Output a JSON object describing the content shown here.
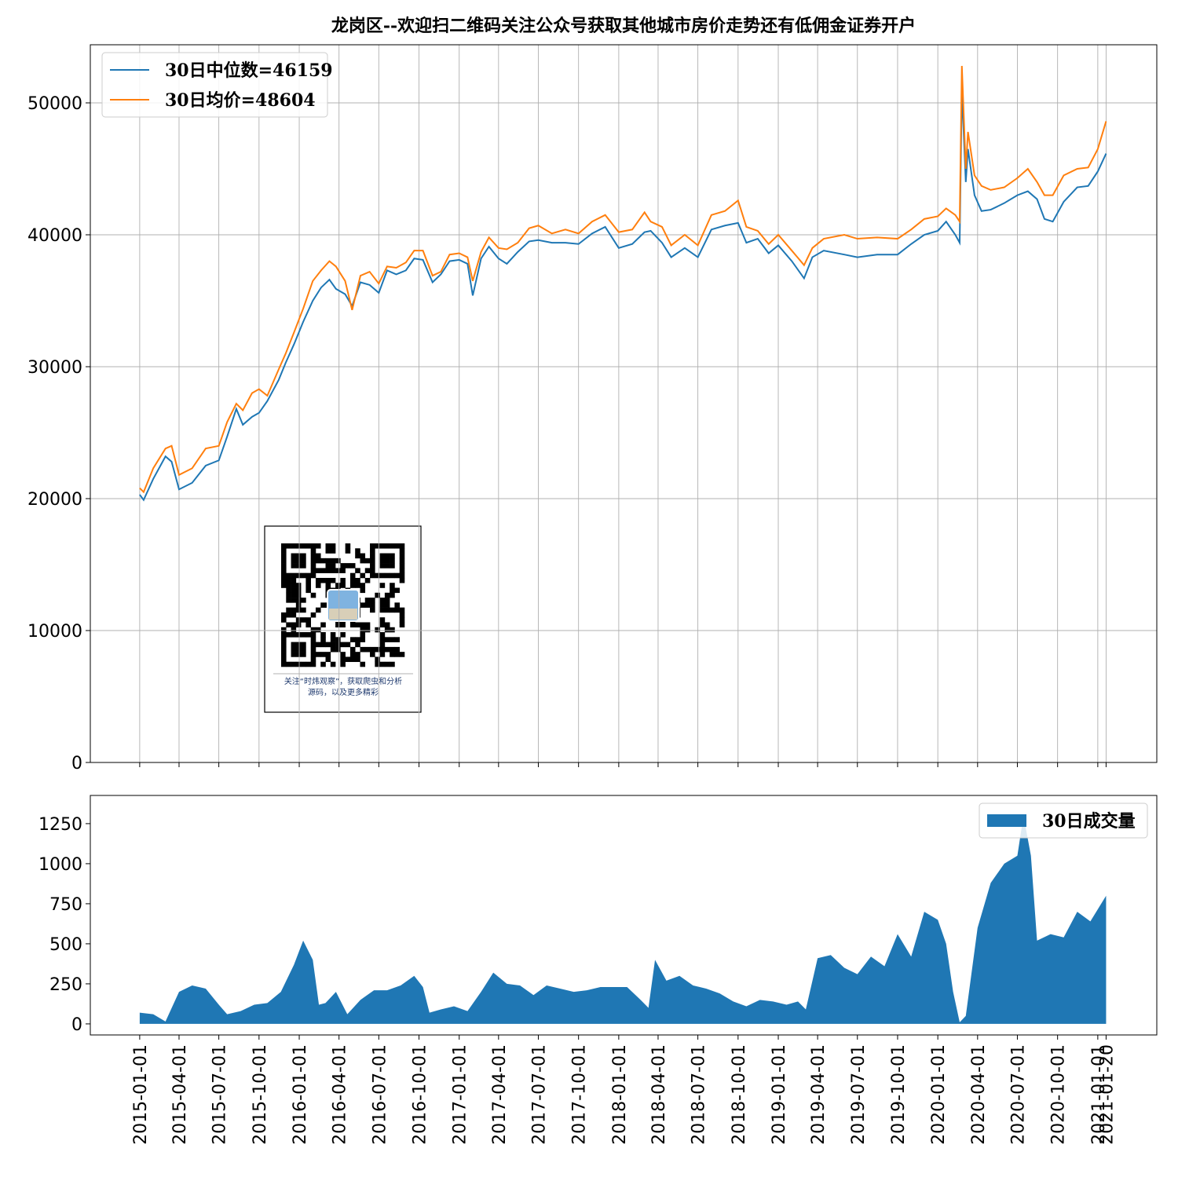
{
  "chart_data": [
    {
      "type": "line",
      "title": "龙岗区--欢迎扫二维码关注公众号获取其他城市房价走势还有低佣金证券开户",
      "x": [
        "2015-01-01",
        "2015-01-10",
        "2015-02-01",
        "2015-03-01",
        "2015-03-15",
        "2015-04-01",
        "2015-05-01",
        "2015-06-01",
        "2015-07-01",
        "2015-07-20",
        "2015-08-10",
        "2015-08-25",
        "2015-09-15",
        "2015-10-01",
        "2015-10-20",
        "2015-11-15",
        "2015-12-01",
        "2015-12-20",
        "2016-01-10",
        "2016-02-01",
        "2016-02-20",
        "2016-03-10",
        "2016-03-25",
        "2016-04-15",
        "2016-05-01",
        "2016-05-20",
        "2016-06-10",
        "2016-07-01",
        "2016-07-20",
        "2016-08-10",
        "2016-09-01",
        "2016-09-20",
        "2016-10-10",
        "2016-11-01",
        "2016-11-20",
        "2016-12-10",
        "2017-01-01",
        "2017-01-20",
        "2017-02-01",
        "2017-02-20",
        "2017-03-10",
        "2017-04-01",
        "2017-04-20",
        "2017-05-15",
        "2017-06-10",
        "2017-07-01",
        "2017-08-01",
        "2017-09-01",
        "2017-10-01",
        "2017-11-01",
        "2017-12-01",
        "2018-01-01",
        "2018-02-01",
        "2018-03-01",
        "2018-03-15",
        "2018-04-10",
        "2018-05-01",
        "2018-06-01",
        "2018-07-01",
        "2018-08-01",
        "2018-09-01",
        "2018-10-01",
        "2018-10-20",
        "2018-11-15",
        "2018-12-10",
        "2019-01-01",
        "2019-02-01",
        "2019-03-01",
        "2019-03-20",
        "2019-04-15",
        "2019-06-01",
        "2019-07-01",
        "2019-08-15",
        "2019-10-01",
        "2019-11-01",
        "2019-12-01",
        "2020-01-01",
        "2020-01-20",
        "2020-02-10",
        "2020-02-20",
        "2020-02-25",
        "2020-03-05",
        "2020-03-10",
        "2020-03-25",
        "2020-04-10",
        "2020-05-01",
        "2020-06-01",
        "2020-07-01",
        "2020-07-25",
        "2020-08-15",
        "2020-09-01",
        "2020-09-20",
        "2020-10-15",
        "2020-11-15",
        "2020-12-10",
        "2021-01-01",
        "2021-01-20"
      ],
      "series": [
        {
          "name": "30日中位数=46159",
          "color": "#1f77b4",
          "values": [
            20300,
            19900,
            21500,
            23200,
            22800,
            20700,
            21200,
            22500,
            22900,
            24700,
            26800,
            25600,
            26200,
            26500,
            27400,
            29000,
            30300,
            31700,
            33400,
            35000,
            36000,
            36600,
            35900,
            35500,
            34600,
            36400,
            36200,
            35600,
            37300,
            37000,
            37300,
            38200,
            38100,
            36400,
            37000,
            38000,
            38100,
            37800,
            35400,
            38200,
            39100,
            38200,
            37800,
            38700,
            39500,
            39600,
            39400,
            39400,
            39300,
            40100,
            40600,
            39000,
            39300,
            40200,
            40300,
            39400,
            38300,
            39000,
            38300,
            40400,
            40700,
            40900,
            39400,
            39700,
            38600,
            39200,
            38000,
            36700,
            38300,
            38800,
            38500,
            38300,
            38500,
            38500,
            39300,
            40000,
            40300,
            41000,
            40000,
            39400,
            51000,
            44000,
            46500,
            43000,
            41800,
            41900,
            42400,
            43000,
            43300,
            42700,
            41200,
            41000,
            42500,
            43600,
            43700,
            44800,
            46159
          ]
        },
        {
          "name": "30日均价=48604",
          "color": "#ff7f0e",
          "values": [
            20800,
            20500,
            22300,
            23800,
            24000,
            21800,
            22300,
            23800,
            24000,
            25800,
            27200,
            26700,
            28000,
            28300,
            27800,
            29800,
            31000,
            32600,
            34400,
            36500,
            37300,
            38000,
            37600,
            36500,
            34300,
            36900,
            37200,
            36300,
            37600,
            37500,
            37900,
            38800,
            38800,
            36900,
            37200,
            38500,
            38600,
            38300,
            36500,
            38700,
            39800,
            39000,
            38900,
            39400,
            40500,
            40700,
            40100,
            40400,
            40100,
            41000,
            41500,
            40200,
            40400,
            41700,
            41000,
            40600,
            39200,
            40000,
            39200,
            41500,
            41800,
            42600,
            40600,
            40300,
            39300,
            40000,
            38800,
            37700,
            39000,
            39700,
            40000,
            39700,
            39800,
            39700,
            40400,
            41200,
            41400,
            42000,
            41500,
            41000,
            52800,
            45000,
            47800,
            44500,
            43700,
            43400,
            43600,
            44300,
            45000,
            44000,
            43000,
            43000,
            44500,
            45000,
            45100,
            46500,
            48604
          ]
        }
      ],
      "xlim": [
        "2014-09-10",
        "2021-05-16"
      ],
      "ylim": [
        0,
        54405
      ],
      "yticks": [
        0,
        10000,
        20000,
        30000,
        40000,
        50000
      ],
      "grid": true,
      "legend": "upper left"
    },
    {
      "type": "area",
      "x": [
        "2015-01-01",
        "2015-02-01",
        "2015-03-01",
        "2015-04-01",
        "2015-05-01",
        "2015-06-01",
        "2015-07-01",
        "2015-07-20",
        "2015-08-20",
        "2015-09-20",
        "2015-10-20",
        "2015-11-20",
        "2015-12-20",
        "2016-01-10",
        "2016-02-01",
        "2016-02-15",
        "2016-03-01",
        "2016-03-25",
        "2016-04-20",
        "2016-05-20",
        "2016-06-20",
        "2016-07-20",
        "2016-08-20",
        "2016-09-20",
        "2016-10-10",
        "2016-10-25",
        "2016-11-20",
        "2016-12-20",
        "2017-01-20",
        "2017-02-20",
        "2017-03-20",
        "2017-04-20",
        "2017-05-20",
        "2017-06-20",
        "2017-07-20",
        "2017-08-20",
        "2017-09-20",
        "2017-10-20",
        "2017-11-20",
        "2017-12-20",
        "2018-01-20",
        "2018-02-20",
        "2018-03-10",
        "2018-03-25",
        "2018-04-20",
        "2018-05-20",
        "2018-06-20",
        "2018-07-20",
        "2018-08-20",
        "2018-09-20",
        "2018-10-20",
        "2018-11-20",
        "2018-12-20",
        "2019-01-20",
        "2019-02-15",
        "2019-03-05",
        "2019-04-01",
        "2019-05-01",
        "2019-06-01",
        "2019-07-01",
        "2019-08-01",
        "2019-09-01",
        "2019-10-01",
        "2019-11-01",
        "2019-12-01",
        "2020-01-01",
        "2020-01-20",
        "2020-02-05",
        "2020-02-20",
        "2020-03-05",
        "2020-04-01",
        "2020-05-01",
        "2020-06-01",
        "2020-07-01",
        "2020-07-15",
        "2020-08-01",
        "2020-08-15",
        "2020-09-15",
        "2020-10-15",
        "2020-11-15",
        "2020-12-15",
        "2021-01-20"
      ],
      "series": [
        {
          "name": "30日成交量",
          "color": "#1f77b4",
          "values": [
            70,
            60,
            15,
            200,
            240,
            220,
            120,
            60,
            80,
            120,
            130,
            200,
            370,
            520,
            400,
            120,
            130,
            200,
            60,
            150,
            210,
            210,
            240,
            300,
            230,
            70,
            90,
            110,
            80,
            200,
            320,
            250,
            240,
            180,
            240,
            220,
            200,
            210,
            230,
            230,
            230,
            150,
            100,
            400,
            270,
            300,
            240,
            220,
            190,
            140,
            110,
            150,
            140,
            120,
            140,
            90,
            410,
            430,
            350,
            310,
            420,
            360,
            560,
            420,
            700,
            650,
            500,
            200,
            10,
            50,
            600,
            880,
            1000,
            1050,
            1300,
            1050,
            520,
            560,
            540,
            700,
            640,
            800
          ]
        }
      ],
      "xlim": [
        "2014-09-10",
        "2021-05-16"
      ],
      "ylim": [
        -69,
        1426
      ],
      "yticks": [
        0,
        250,
        500,
        750,
        1000,
        1250
      ],
      "xticks": [
        "2015-01-01",
        "2015-04-01",
        "2015-07-01",
        "2015-10-01",
        "2016-01-01",
        "2016-04-01",
        "2016-07-01",
        "2016-10-01",
        "2017-01-01",
        "2017-04-01",
        "2017-07-01",
        "2017-10-01",
        "2018-01-01",
        "2018-04-01",
        "2018-07-01",
        "2018-10-01",
        "2019-01-01",
        "2019-04-01",
        "2019-07-01",
        "2019-10-01",
        "2020-01-01",
        "2020-04-01",
        "2020-07-01",
        "2020-10-01",
        "2021-01-01",
        "2021-01-20"
      ],
      "grid": false,
      "legend": "upper right"
    }
  ],
  "qr": {
    "caption": [
      "关注“时炜观察”，获取爬虫和分析",
      "源码，以及更多精彩"
    ]
  }
}
